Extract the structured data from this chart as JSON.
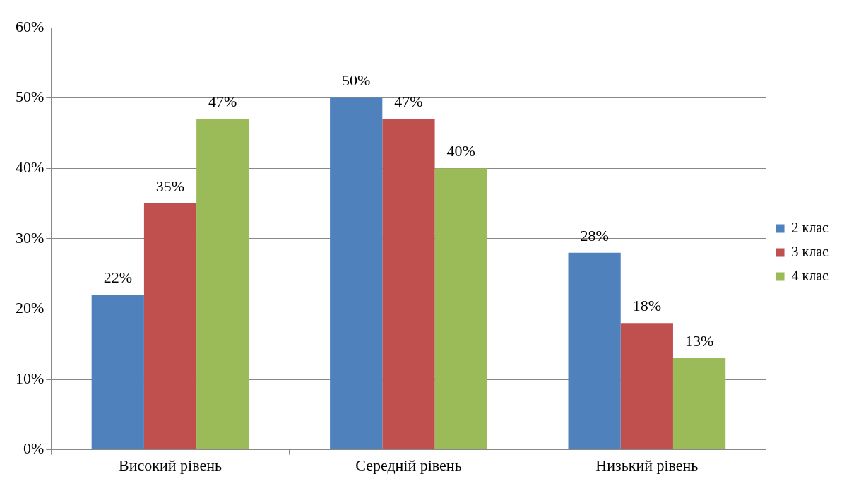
{
  "chart_data": {
    "type": "bar",
    "categories": [
      "Високий рівень",
      "Середній рівень",
      "Низький рівень"
    ],
    "series": [
      {
        "name": "2 клас",
        "color": "#4f81bd",
        "values": [
          22,
          50,
          28
        ],
        "value_labels": [
          "22%",
          "50%",
          "28%"
        ]
      },
      {
        "name": "3 клас",
        "color": "#c0504d",
        "values": [
          35,
          47,
          18
        ],
        "value_labels": [
          "35%",
          "47%",
          "18%"
        ]
      },
      {
        "name": "4 клас",
        "color": "#9bbb59",
        "values": [
          47,
          40,
          13
        ],
        "value_labels": [
          "47%",
          "40%",
          "13%"
        ]
      }
    ],
    "ylim": [
      0,
      60
    ],
    "yticks": [
      {
        "value": 0,
        "label": "0%"
      },
      {
        "value": 10,
        "label": "10%"
      },
      {
        "value": 20,
        "label": "20%"
      },
      {
        "value": 30,
        "label": "30%"
      },
      {
        "value": 40,
        "label": "40%"
      },
      {
        "value": 50,
        "label": "50%"
      },
      {
        "value": 60,
        "label": "60%"
      }
    ],
    "grid": "y",
    "legend": "right"
  }
}
